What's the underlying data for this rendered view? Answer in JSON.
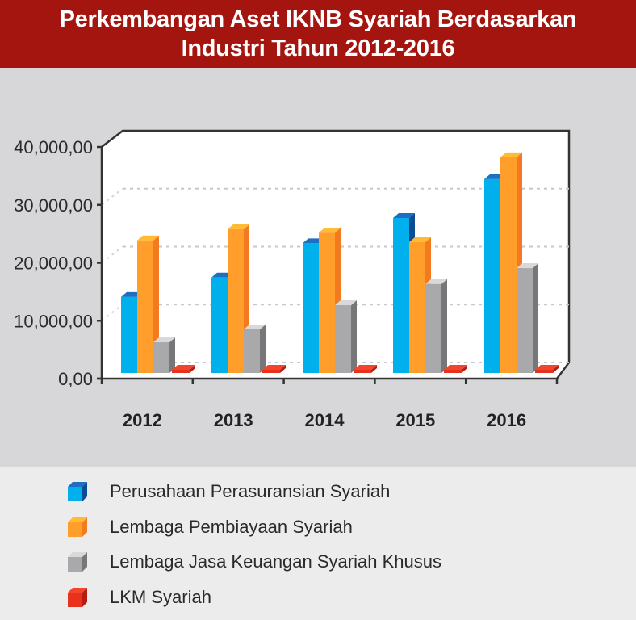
{
  "header": {
    "title_line1": "Perkembangan Aset IKNB Syariah Berdasarkan",
    "title_line2": "Industri Tahun 2012-2016"
  },
  "colors": {
    "header_bg": "#a5150f",
    "page_bg": "#d7d7d9",
    "legend_bg": "#ececec",
    "series": [
      {
        "front": "#00b0ec",
        "top": "#1d6fc2",
        "side": "#0b4c92"
      },
      {
        "front": "#ff9e2a",
        "top": "#ffbb33",
        "side": "#f47a1f"
      },
      {
        "front": "#a9a9ac",
        "top": "#d9d9d9",
        "side": "#77777a"
      },
      {
        "front": "#e8321e",
        "top": "#f2452c",
        "side": "#b51e10"
      }
    ]
  },
  "chart_data": {
    "type": "bar",
    "title": "Perkembangan Aset IKNB Syariah Berdasarkan Industri Tahun 2012-2016",
    "xlabel": "",
    "ylabel": "",
    "categories": [
      "2012",
      "2013",
      "2014",
      "2015",
      "2016"
    ],
    "series": [
      {
        "name": "Perusahaan Perasuransian Syariah",
        "values": [
          12900,
          16200,
          22000,
          26300,
          32900
        ]
      },
      {
        "name": "Lembaga Pembiayaan Syariah",
        "values": [
          22500,
          24400,
          23800,
          22200,
          36600
        ]
      },
      {
        "name": "Lembaga Jasa Keuangan Syariah Khusus",
        "values": [
          5200,
          7400,
          11500,
          15100,
          17800
        ]
      },
      {
        "name": "LKM Syariah",
        "values": [
          100,
          100,
          100,
          100,
          100
        ]
      }
    ],
    "y_ticks": [
      "0,00",
      "10,000,00",
      "20,000,00",
      "30,000,00",
      "40,000,00"
    ],
    "ylim": [
      0,
      40000
    ],
    "grid": true,
    "style": "3d-clustered-column",
    "legend_position": "bottom"
  },
  "legend": {
    "items": [
      {
        "label": "Perusahaan Perasuransian Syariah"
      },
      {
        "label": "Lembaga Pembiayaan Syariah"
      },
      {
        "label": "Lembaga Jasa Keuangan Syariah Khusus"
      },
      {
        "label": "LKM Syariah"
      }
    ]
  }
}
